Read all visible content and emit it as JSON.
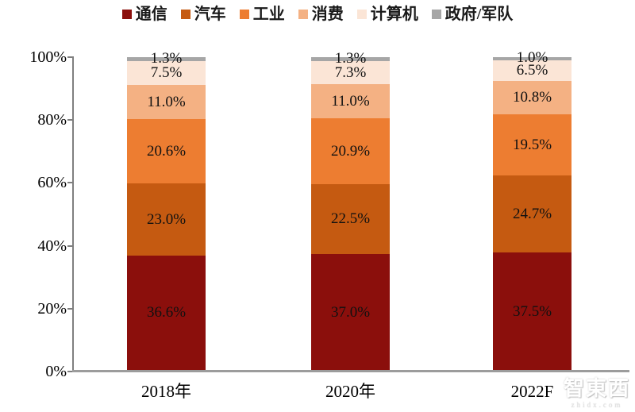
{
  "watermark": {
    "brand": "智東西",
    "domain": "zhidx.com"
  },
  "chart_data": {
    "type": "bar",
    "variant": "stacked-percent-column",
    "title": "",
    "xlabel": "",
    "ylabel": "",
    "categories": [
      "2018年",
      "2020年",
      "2022F"
    ],
    "series": [
      {
        "name": "通信",
        "color": "#8B0F0C",
        "values": [
          36.6,
          37.0,
          37.5
        ]
      },
      {
        "name": "汽车",
        "color": "#C55A11",
        "values": [
          23.0,
          22.5,
          24.7
        ]
      },
      {
        "name": "工业",
        "color": "#ED7D31",
        "values": [
          20.6,
          20.9,
          19.5
        ]
      },
      {
        "name": "消费",
        "color": "#F4B183",
        "values": [
          11.0,
          11.0,
          10.8
        ]
      },
      {
        "name": "计算机",
        "color": "#FBE5D6",
        "values": [
          7.5,
          7.3,
          6.5
        ]
      },
      {
        "name": "政府/军队",
        "color": "#A6A6A6",
        "values": [
          1.3,
          1.3,
          1.0
        ]
      }
    ],
    "y_ticks": [
      "0%",
      "20%",
      "40%",
      "60%",
      "80%",
      "100%"
    ],
    "ylim": [
      0,
      100
    ],
    "grid": false,
    "legend_position": "top",
    "data_label_format": "{value}%",
    "axis_color": "#7f7f7f"
  }
}
